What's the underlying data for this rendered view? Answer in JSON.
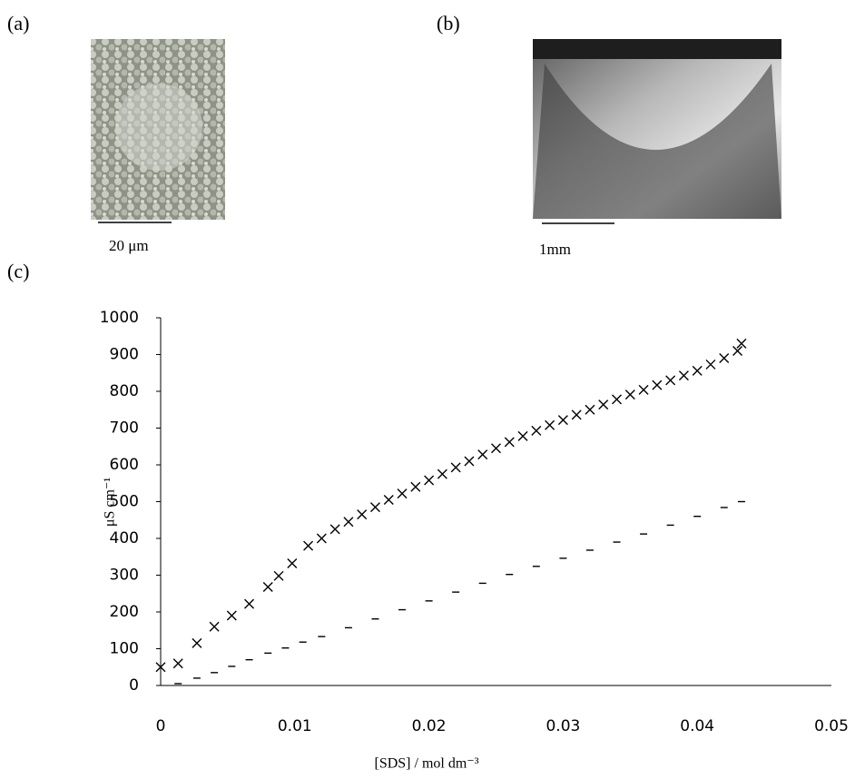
{
  "panels": [
    {
      "label": "(a)",
      "scale_label": "20 μm"
    },
    {
      "label": "(b)",
      "scale_label": "1mm"
    }
  ],
  "chart_data": {
    "type": "scatter",
    "panel_label": "(c)",
    "x_label": "[SDS] / mol dm⁻³",
    "y_label": "μS cm⁻¹",
    "xlim": [
      0,
      0.05
    ],
    "xticks": [
      0,
      0.01,
      0.02,
      0.03,
      0.04,
      0.05
    ],
    "ylim": [
      0,
      1000
    ],
    "yticks": [
      0,
      100,
      200,
      300,
      400,
      500,
      600,
      700,
      800,
      900,
      1000
    ],
    "grid": false,
    "series": [
      {
        "marker": "x",
        "color": "#000000",
        "x": [
          0,
          0.0013,
          0.0027,
          0.004,
          0.0053,
          0.0066,
          0.008,
          0.0088,
          0.0098,
          0.011,
          0.012,
          0.013,
          0.014,
          0.015,
          0.016,
          0.017,
          0.018,
          0.019,
          0.02,
          0.021,
          0.022,
          0.023,
          0.024,
          0.025,
          0.026,
          0.027,
          0.028,
          0.029,
          0.03,
          0.031,
          0.032,
          0.033,
          0.034,
          0.035,
          0.036,
          0.037,
          0.038,
          0.039,
          0.04,
          0.041,
          0.042,
          0.043,
          0.0433
        ],
        "values": [
          50,
          60,
          115,
          160,
          190,
          222,
          268,
          298,
          332,
          380,
          400,
          425,
          445,
          465,
          485,
          505,
          522,
          540,
          558,
          575,
          593,
          610,
          628,
          645,
          662,
          678,
          693,
          708,
          722,
          736,
          750,
          764,
          778,
          791,
          804,
          817,
          830,
          843,
          856,
          873,
          890,
          910,
          930
        ]
      },
      {
        "marker": "dash",
        "color": "#000000",
        "x": [
          0.0013,
          0.0027,
          0.004,
          0.0053,
          0.0066,
          0.008,
          0.0093,
          0.0106,
          0.012,
          0.014,
          0.016,
          0.018,
          0.02,
          0.022,
          0.024,
          0.026,
          0.028,
          0.03,
          0.032,
          0.034,
          0.036,
          0.038,
          0.04,
          0.042,
          0.0433
        ],
        "values": [
          5,
          20,
          35,
          52,
          70,
          88,
          102,
          118,
          133,
          157,
          181,
          206,
          230,
          254,
          278,
          302,
          324,
          346,
          368,
          390,
          412,
          436,
          460,
          484,
          500
        ]
      }
    ]
  }
}
